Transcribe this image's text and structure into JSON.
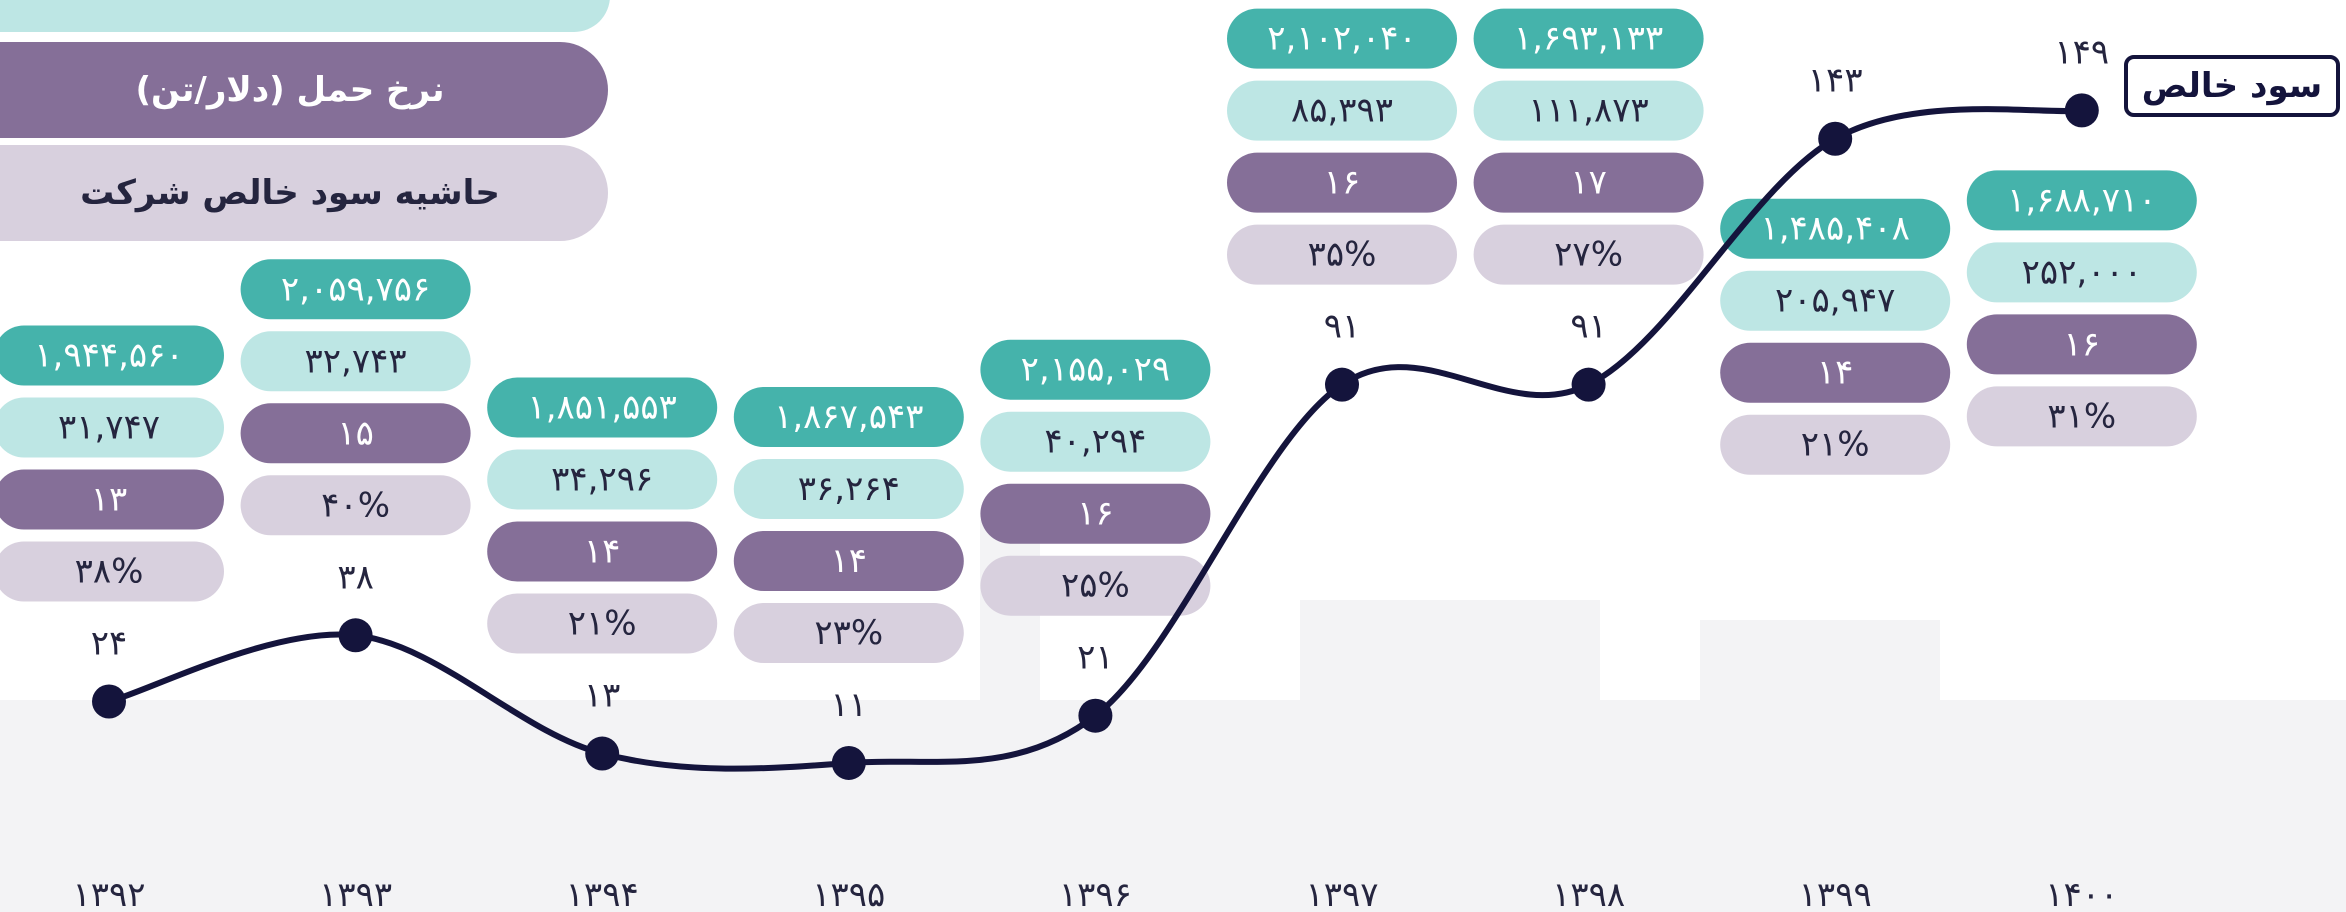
{
  "chart_data": {
    "type": "line",
    "categories": [
      "۱۳۹۲",
      "۱۳۹۳",
      "۱۳۹۴",
      "۱۳۹۵",
      "۱۳۹۶",
      "۱۳۹۷",
      "۱۳۹۸",
      "۱۳۹۹",
      "۱۴۰۰"
    ],
    "ylim": [
      0,
      155
    ],
    "series": [
      {
        "name": "سود خالص",
        "color": "#14143c",
        "values": [
          24,
          38,
          13,
          11,
          21,
          91,
          91,
          143,
          149
        ],
        "value_labels": [
          "۲۴",
          "۳۸",
          "۱۳",
          "۱۱",
          "۲۱",
          "۹۱",
          "۹۱",
          "۱۴۳",
          "۱۴۹"
        ]
      },
      {
        "color": "#45b3ab",
        "values": [
          1944560,
          2059756,
          1851553,
          1867543,
          2155029,
          2102040,
          1693133,
          1485408,
          1688710
        ],
        "value_labels": [
          "۱,۹۴۴,۵۶۰",
          "۲,۰۵۹,۷۵۶",
          "۱,۸۵۱,۵۵۳",
          "۱,۸۶۷,۵۴۳",
          "۲,۱۵۵,۰۲۹",
          "۲,۱۰۲,۰۴۰",
          "۱,۶۹۳,۱۳۳",
          "۱,۴۸۵,۴۰۸",
          "۱,۶۸۸,۷۱۰"
        ]
      },
      {
        "color": "#bde6e4",
        "values": [
          31747,
          32743,
          34296,
          36264,
          40294,
          85393,
          111873,
          205947,
          252000
        ],
        "value_labels": [
          "۳۱,۷۴۷",
          "۳۲,۷۴۳",
          "۳۴,۲۹۶",
          "۳۶,۲۶۴",
          "۴۰,۲۹۴",
          "۸۵,۳۹۳",
          "۱۱۱,۸۷۳",
          "۲۰۵,۹۴۷",
          "۲۵۲,۰۰۰"
        ]
      },
      {
        "name": "نرخ حمل (دلار/تن)",
        "color": "#856f98",
        "values": [
          13,
          15,
          14,
          14,
          16,
          16,
          17,
          14,
          16
        ],
        "value_labels": [
          "۱۳",
          "۱۵",
          "۱۴",
          "۱۴",
          "۱۶",
          "۱۶",
          "۱۷",
          "۱۴",
          "۱۶"
        ]
      },
      {
        "name": "حاشیه سود خالص شرکت",
        "color": "#d8d0de",
        "values": [
          38,
          40,
          21,
          23,
          25,
          35,
          27,
          21,
          31
        ],
        "value_labels": [
          "۳۸%",
          "۴۰%",
          "۲۱%",
          "۲۳%",
          "۲۵%",
          "۳۵%",
          "۲۷%",
          "۲۱%",
          "۳۱%"
        ]
      }
    ]
  }
}
